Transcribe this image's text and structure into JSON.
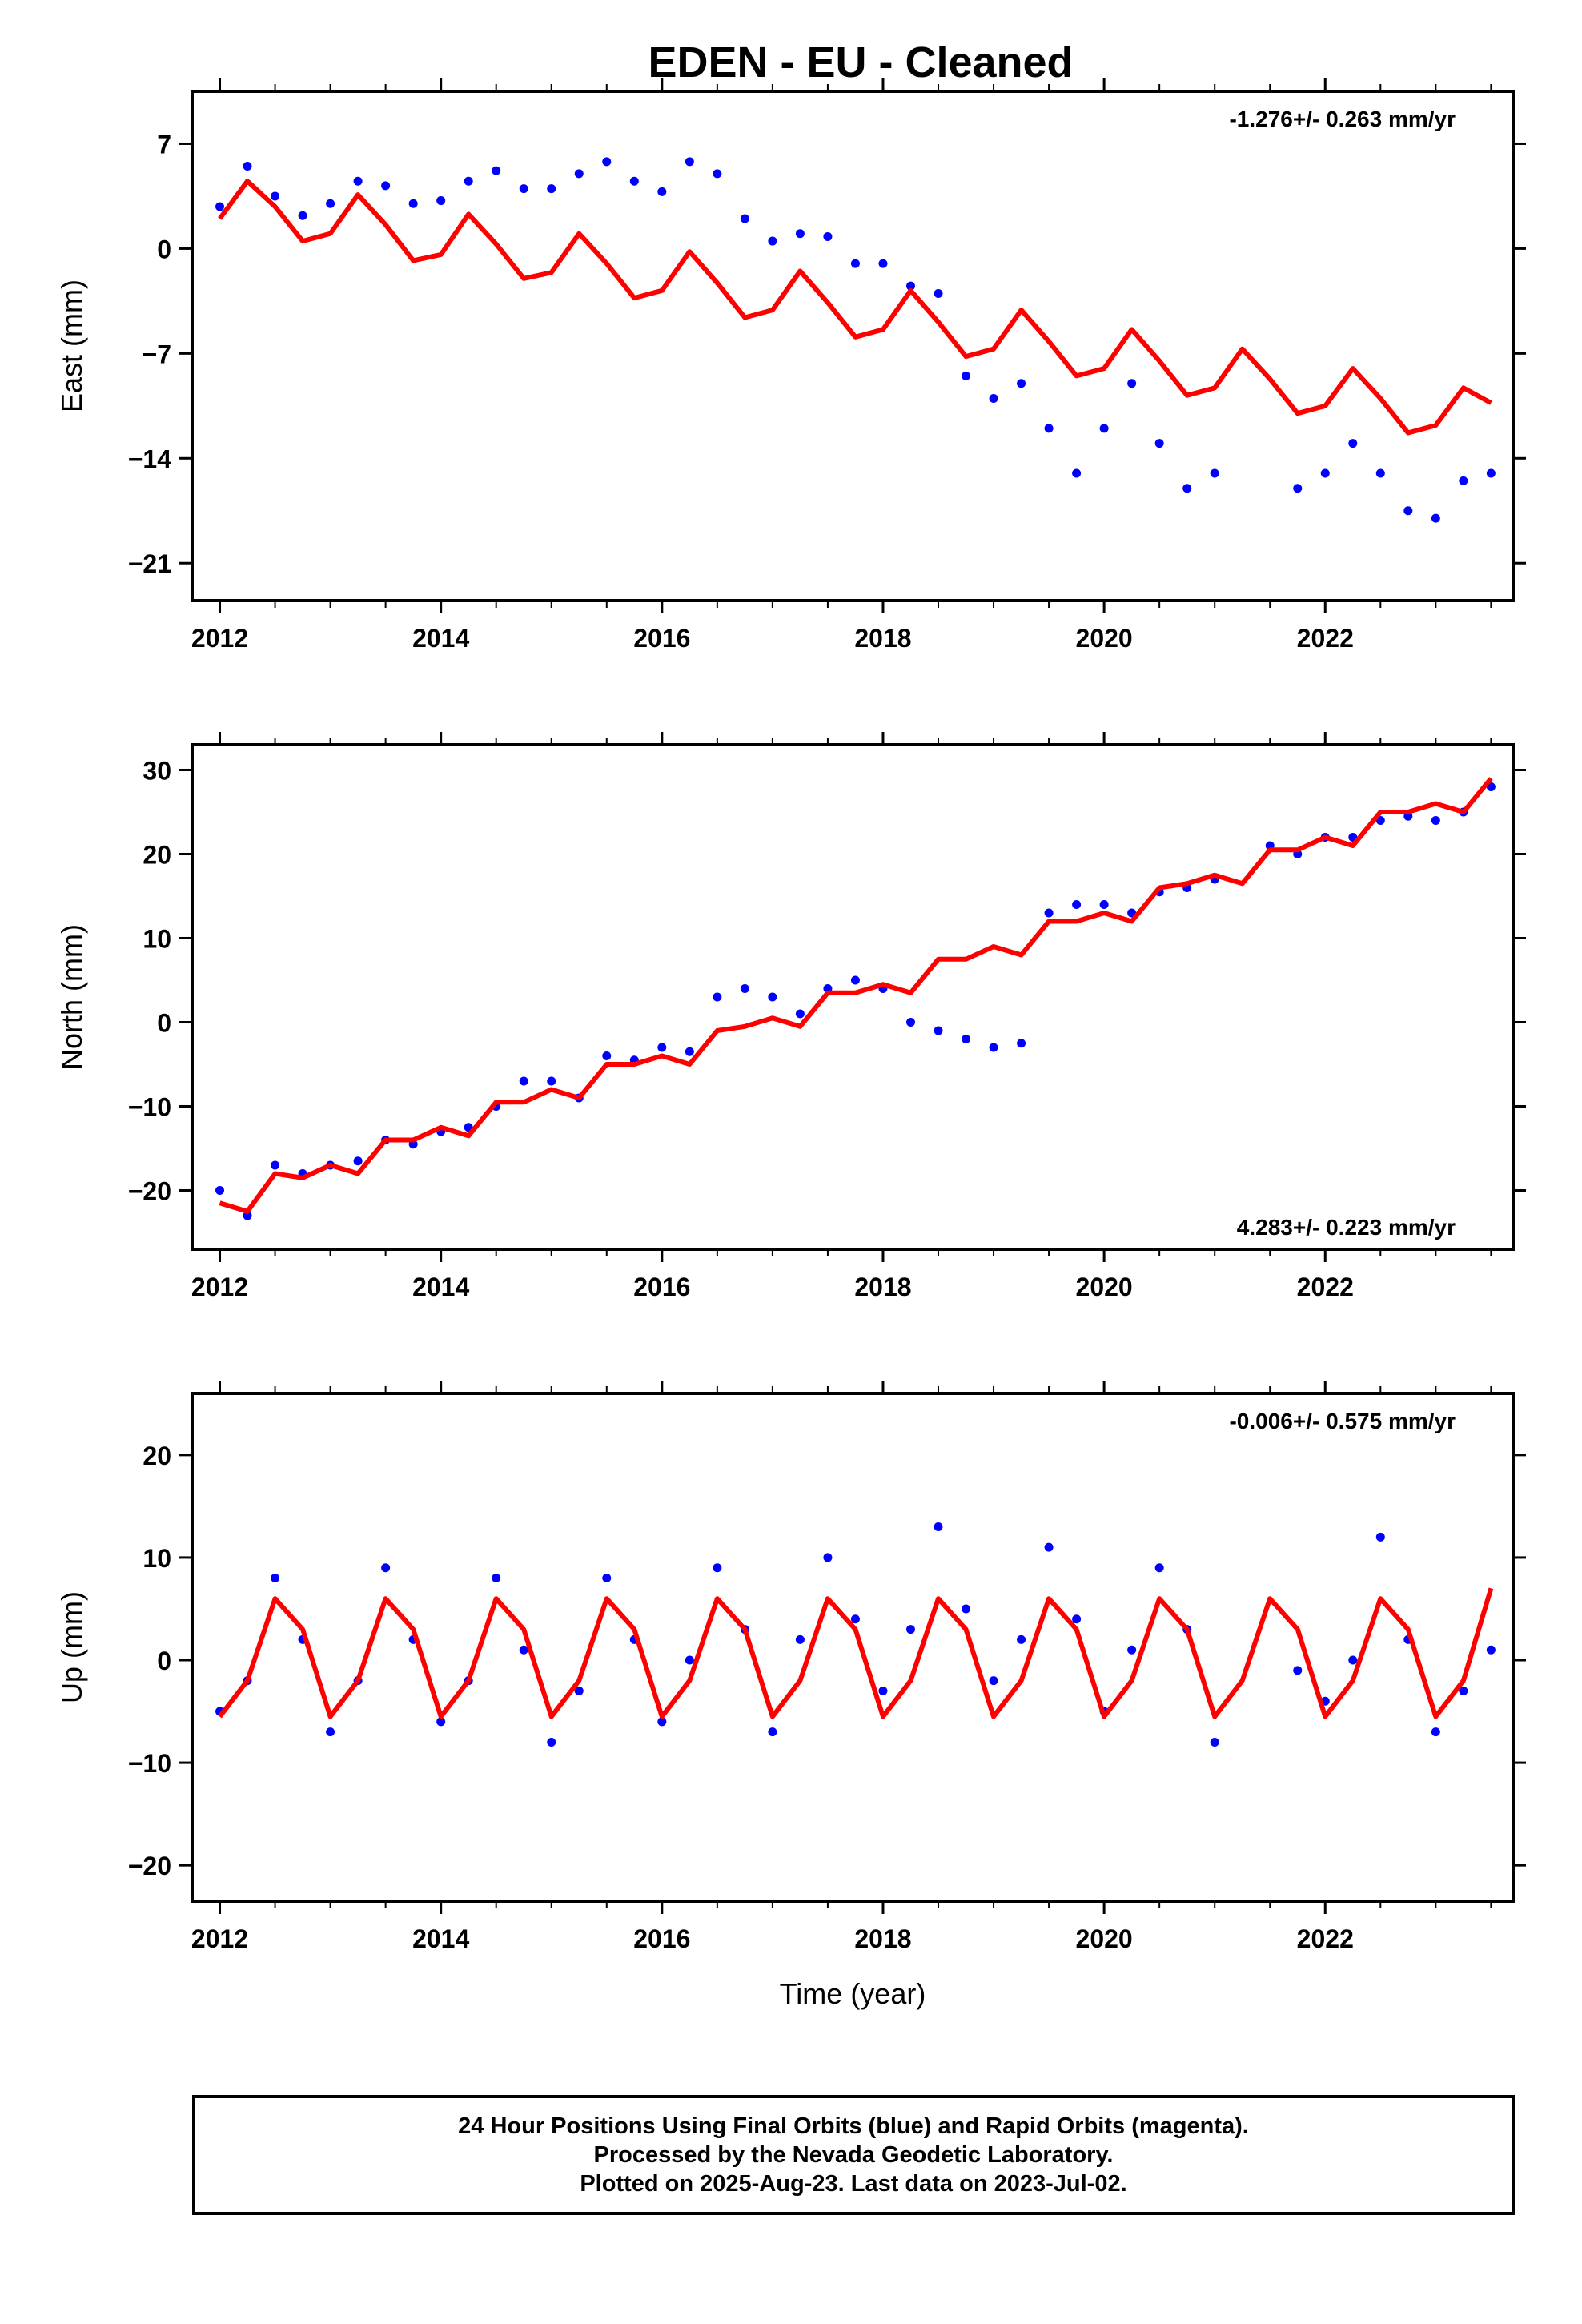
{
  "title": "EDEN  - EU - Cleaned",
  "colors": {
    "points": "#0000ff",
    "model": "#ff0000",
    "frame": "#000000"
  },
  "footer": {
    "line1": "24 Hour Positions Using Final Orbits (blue) and Rapid Orbits (magenta).",
    "line2": "Processed by the Nevada Geodetic Laboratory.",
    "line3": "Plotted on 2025-Aug-23. Last data on 2023-Jul-02."
  },
  "chart_data": [
    {
      "type": "scatter",
      "component": "east",
      "ylabel": "East (mm)",
      "xlabel": "",
      "rate_label": "-1.276+/- 0.263 mm/yr",
      "xlim": [
        2011.75,
        2023.7
      ],
      "ylim": [
        -23.5,
        10.5
      ],
      "xticks": [
        2012,
        2014,
        2016,
        2018,
        2020,
        2022
      ],
      "yticks": [
        7,
        0,
        -7,
        -14,
        -21
      ],
      "ytick_labels": [
        "7",
        "0",
        "−7",
        "−14",
        "−21"
      ],
      "observations_x": [
        2012.0,
        2012.25,
        2012.5,
        2012.75,
        2013.0,
        2013.25,
        2013.5,
        2013.75,
        2014.0,
        2014.25,
        2014.5,
        2014.75,
        2015.0,
        2015.25,
        2015.5,
        2015.75,
        2016.0,
        2016.25,
        2016.5,
        2016.75,
        2017.0,
        2017.25,
        2017.5,
        2017.75,
        2018.0,
        2018.25,
        2018.5,
        2018.75,
        2019.0,
        2019.25,
        2019.5,
        2019.75,
        2020.0,
        2020.25,
        2020.5,
        2020.75,
        2021.0,
        2021.25,
        2021.5,
        2021.75,
        2022.0,
        2022.25,
        2022.5,
        2022.75,
        2023.0,
        2023.25,
        2023.5
      ],
      "observations_y": [
        2.8,
        5.5,
        3.5,
        2.2,
        3.0,
        4.5,
        4.2,
        3.0,
        3.2,
        4.5,
        5.2,
        4.0,
        4.0,
        5.0,
        5.8,
        4.5,
        3.8,
        5.8,
        5.0,
        2.0,
        0.5,
        1.0,
        0.8,
        -1.0,
        -1.0,
        -2.5,
        -3.0,
        -8.5,
        -10.0,
        -9.0,
        -12.0,
        -15.0,
        -12.0,
        -9.0,
        -13.0,
        -16.0,
        -15.0,
        null,
        null,
        -16.0,
        -15.0,
        -13.0,
        -15.0,
        -17.5,
        -18.0,
        -15.5,
        -15.0
      ],
      "model_x": [
        2012.0,
        2012.25,
        2012.5,
        2012.75,
        2013.0,
        2013.25,
        2013.5,
        2013.75,
        2014.0,
        2014.25,
        2014.5,
        2014.75,
        2015.0,
        2015.25,
        2015.5,
        2015.75,
        2016.0,
        2016.25,
        2016.5,
        2016.75,
        2017.0,
        2017.25,
        2017.5,
        2017.75,
        2018.0,
        2018.25,
        2018.5,
        2018.75,
        2019.0,
        2019.25,
        2019.5,
        2019.75,
        2020.0,
        2020.25,
        2020.5,
        2020.75,
        2021.0,
        2021.25,
        2021.5,
        2021.75,
        2022.0,
        2022.25,
        2022.5,
        2022.75,
        2023.0,
        2023.25,
        2023.5
      ],
      "model_y": [
        2.0,
        4.5,
        2.8,
        0.5,
        1.0,
        3.6,
        1.6,
        -0.8,
        -0.4,
        2.3,
        0.3,
        -2.0,
        -1.6,
        1.0,
        -1.0,
        -3.3,
        -2.8,
        -0.2,
        -2.3,
        -4.6,
        -4.1,
        -1.5,
        -3.6,
        -5.9,
        -5.4,
        -2.8,
        -4.9,
        -7.2,
        -6.7,
        -4.1,
        -6.2,
        -8.5,
        -8.0,
        -5.4,
        -7.5,
        -9.8,
        -9.3,
        -6.7,
        -8.7,
        -11.0,
        -10.5,
        -8.0,
        -10.0,
        -12.3,
        -11.8,
        -9.3,
        -10.3
      ]
    },
    {
      "type": "scatter",
      "component": "north",
      "ylabel": "North (mm)",
      "xlabel": "",
      "rate_label": "4.283+/- 0.223 mm/yr",
      "xlim": [
        2011.75,
        2023.7
      ],
      "ylim": [
        -27,
        33
      ],
      "xticks": [
        2012,
        2014,
        2016,
        2018,
        2020,
        2022
      ],
      "yticks": [
        30,
        20,
        10,
        0,
        -10,
        -20
      ],
      "ytick_labels": [
        "30",
        "20",
        "10",
        "0",
        "−10",
        "−20"
      ],
      "observations_x": [
        2012.0,
        2012.25,
        2012.5,
        2012.75,
        2013.0,
        2013.25,
        2013.5,
        2013.75,
        2014.0,
        2014.25,
        2014.5,
        2014.75,
        2015.0,
        2015.25,
        2015.5,
        2015.75,
        2016.0,
        2016.25,
        2016.5,
        2016.75,
        2017.0,
        2017.25,
        2017.5,
        2017.75,
        2018.0,
        2018.25,
        2018.5,
        2018.75,
        2019.0,
        2019.25,
        2019.5,
        2019.75,
        2020.0,
        2020.25,
        2020.5,
        2020.75,
        2021.0,
        2021.25,
        2021.5,
        2021.75,
        2022.0,
        2022.25,
        2022.5,
        2022.75,
        2023.0,
        2023.25,
        2023.5
      ],
      "observations_y": [
        -20.0,
        -23.0,
        -17.0,
        -18.0,
        -17.0,
        -16.5,
        -14.0,
        -14.5,
        -13.0,
        -12.5,
        -10.0,
        -7.0,
        -7.0,
        -9.0,
        -4.0,
        -4.5,
        -3.0,
        -3.5,
        3.0,
        4.0,
        3.0,
        1.0,
        4.0,
        5.0,
        4.0,
        0.0,
        -1.0,
        -2.0,
        -3.0,
        -2.5,
        13.0,
        14.0,
        14.0,
        13.0,
        15.5,
        16.0,
        17.0,
        null,
        21.0,
        20.0,
        22.0,
        22.0,
        24.0,
        24.5,
        24.0,
        25.0,
        28.0
      ],
      "model_x": [
        2012.0,
        2012.25,
        2012.5,
        2012.75,
        2013.0,
        2013.25,
        2013.5,
        2013.75,
        2014.0,
        2014.25,
        2014.5,
        2014.75,
        2015.0,
        2015.25,
        2015.5,
        2015.75,
        2016.0,
        2016.25,
        2016.5,
        2016.75,
        2017.0,
        2017.25,
        2017.5,
        2017.75,
        2018.0,
        2018.25,
        2018.5,
        2018.75,
        2019.0,
        2019.25,
        2019.5,
        2019.75,
        2020.0,
        2020.25,
        2020.5,
        2020.75,
        2021.0,
        2021.25,
        2021.5,
        2021.75,
        2022.0,
        2022.25,
        2022.5,
        2022.75,
        2023.0,
        2023.25,
        2023.5
      ],
      "model_y": [
        -21.5,
        -22.5,
        -18.0,
        -18.5,
        -17.0,
        -18.0,
        -14.0,
        -14.0,
        -12.5,
        -13.5,
        -9.5,
        -9.5,
        -8.0,
        -9.0,
        -5.0,
        -5.0,
        -4.0,
        -5.0,
        -1.0,
        -0.5,
        0.5,
        -0.5,
        3.5,
        3.5,
        4.5,
        3.5,
        7.5,
        7.5,
        9.0,
        8.0,
        12.0,
        12.0,
        13.0,
        12.0,
        16.0,
        16.5,
        17.5,
        16.5,
        20.5,
        20.5,
        22.0,
        21.0,
        25.0,
        25.0,
        26.0,
        25.0,
        29.0
      ]
    },
    {
      "type": "scatter",
      "component": "up",
      "ylabel": "Up (mm)",
      "xlabel": "Time (year)",
      "rate_label": "-0.006+/- 0.575 mm/yr",
      "xlim": [
        2011.75,
        2023.7
      ],
      "ylim": [
        -23.5,
        26
      ],
      "xticks": [
        2012,
        2014,
        2016,
        2018,
        2020,
        2022
      ],
      "yticks": [
        20,
        10,
        0,
        -10,
        -20
      ],
      "ytick_labels": [
        "20",
        "10",
        "0",
        "−10",
        "−20"
      ],
      "observations_x": [
        2012.0,
        2012.25,
        2012.5,
        2012.75,
        2013.0,
        2013.25,
        2013.5,
        2013.75,
        2014.0,
        2014.25,
        2014.5,
        2014.75,
        2015.0,
        2015.25,
        2015.5,
        2015.75,
        2016.0,
        2016.25,
        2016.5,
        2016.75,
        2017.0,
        2017.25,
        2017.5,
        2017.75,
        2018.0,
        2018.25,
        2018.5,
        2018.75,
        2019.0,
        2019.25,
        2019.5,
        2019.75,
        2020.0,
        2020.25,
        2020.5,
        2020.75,
        2021.0,
        2021.25,
        2021.5,
        2021.75,
        2022.0,
        2022.25,
        2022.5,
        2022.75,
        2023.0,
        2023.25,
        2023.5
      ],
      "observations_y": [
        -5.0,
        -2.0,
        8.0,
        2.0,
        -7.0,
        -2.0,
        9.0,
        2.0,
        -6.0,
        -2.0,
        8.0,
        1.0,
        -8.0,
        -3.0,
        8.0,
        2.0,
        -6.0,
        0.0,
        9.0,
        3.0,
        -7.0,
        2.0,
        10.0,
        4.0,
        -3.0,
        3.0,
        13.0,
        5.0,
        -2.0,
        2.0,
        11.0,
        4.0,
        -5.0,
        1.0,
        9.0,
        3.0,
        -8.0,
        null,
        null,
        -1.0,
        -4.0,
        0.0,
        12.0,
        2.0,
        -7.0,
        -3.0,
        1.0
      ],
      "model_x": [
        2012.0,
        2012.25,
        2012.5,
        2012.75,
        2013.0,
        2013.25,
        2013.5,
        2013.75,
        2014.0,
        2014.25,
        2014.5,
        2014.75,
        2015.0,
        2015.25,
        2015.5,
        2015.75,
        2016.0,
        2016.25,
        2016.5,
        2016.75,
        2017.0,
        2017.25,
        2017.5,
        2017.75,
        2018.0,
        2018.25,
        2018.5,
        2018.75,
        2019.0,
        2019.25,
        2019.5,
        2019.75,
        2020.0,
        2020.25,
        2020.5,
        2020.75,
        2021.0,
        2021.25,
        2021.5,
        2021.75,
        2022.0,
        2022.25,
        2022.5,
        2022.75,
        2023.0,
        2023.25,
        2023.5
      ],
      "model_y": [
        -5.5,
        -2.0,
        6.0,
        3.0,
        -5.5,
        -2.0,
        6.0,
        3.0,
        -5.5,
        -2.0,
        6.0,
        3.0,
        -5.5,
        -2.0,
        6.0,
        3.0,
        -5.5,
        -2.0,
        6.0,
        3.0,
        -5.5,
        -2.0,
        6.0,
        3.0,
        -5.5,
        -2.0,
        6.0,
        3.0,
        -5.5,
        -2.0,
        6.0,
        3.0,
        -5.5,
        -2.0,
        6.0,
        3.0,
        -5.5,
        -2.0,
        6.0,
        3.0,
        -5.5,
        -2.0,
        6.0,
        3.0,
        -5.5,
        -2.0,
        7.0
      ]
    }
  ]
}
